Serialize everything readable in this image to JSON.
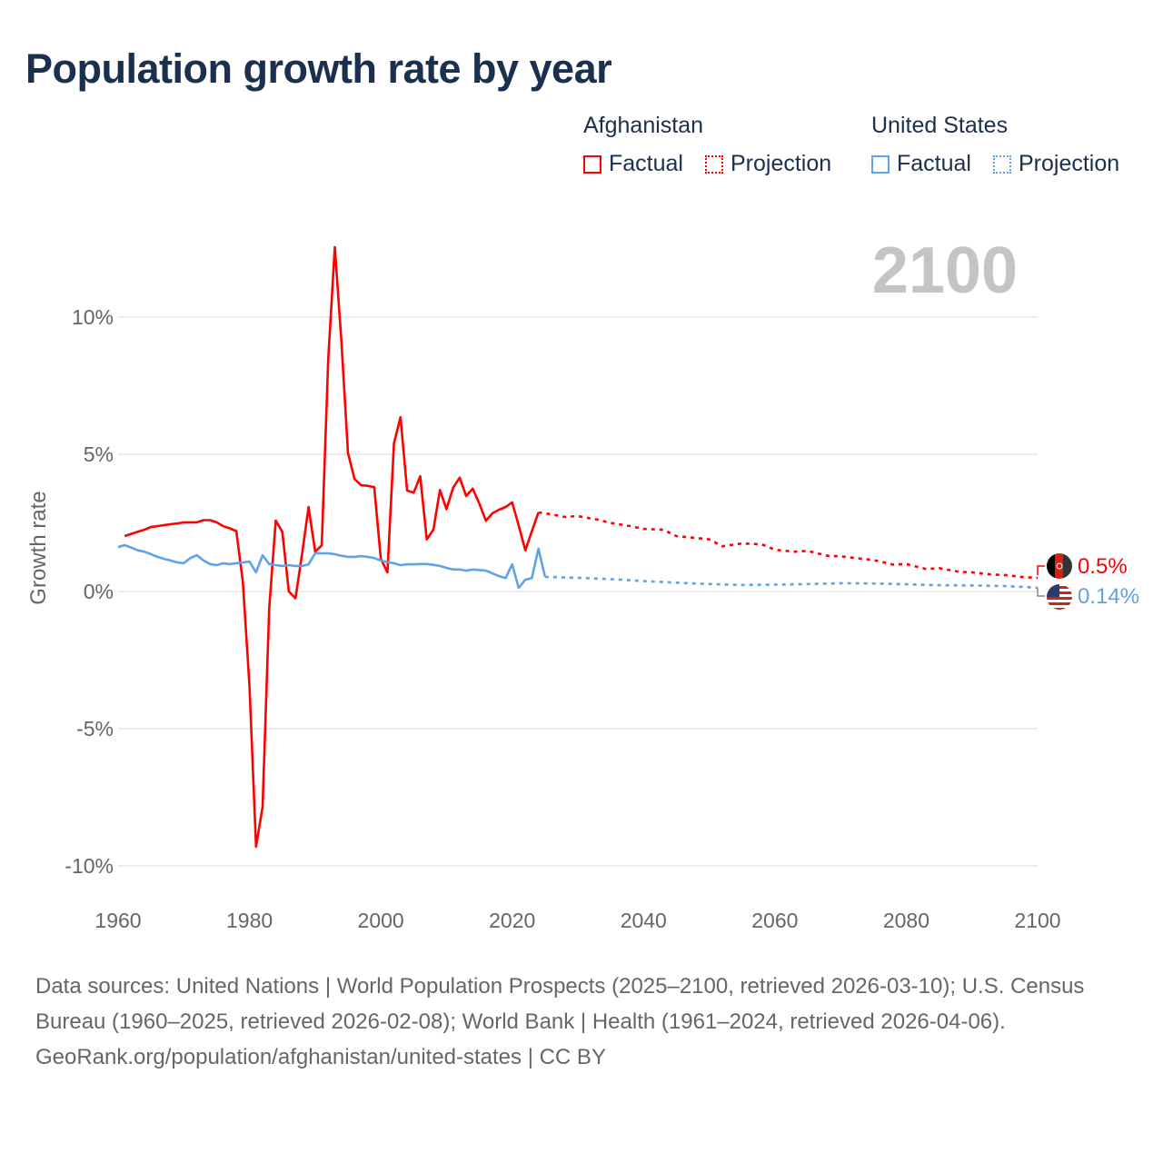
{
  "chart_data": {
    "type": "line",
    "title": "Population growth rate by year",
    "ylabel": "Growth rate",
    "xlabel": "",
    "xlim": [
      1960,
      2100
    ],
    "ylim": [
      -10.5,
      13
    ],
    "grid": true,
    "x_ticks": [
      1960,
      1980,
      2000,
      2020,
      2040,
      2060,
      2080,
      2100
    ],
    "x_tick_labels": [
      "1960",
      "1980",
      "2000",
      "2020",
      "2040",
      "2060",
      "2080",
      "2100"
    ],
    "y_ticks": [
      10,
      5,
      0,
      -5,
      -10
    ],
    "y_tick_labels": [
      "10%",
      "5%",
      "0%",
      "-5%",
      "-10%"
    ],
    "current_year_label": "2100",
    "legend_placement": "top-right",
    "legend": {
      "groups": [
        {
          "name": "Afghanistan",
          "items": [
            "Factual",
            "Projection"
          ],
          "color": "#ff0000"
        },
        {
          "name": "United States",
          "items": [
            "Factual",
            "Projection"
          ],
          "color": "#5fa2e8"
        }
      ]
    },
    "series": [
      {
        "name": "Afghanistan",
        "kind": "Factual",
        "color": "#ff0000",
        "x": [
          1961,
          1962,
          1963,
          1964,
          1965,
          1966,
          1967,
          1968,
          1969,
          1970,
          1971,
          1972,
          1973,
          1974,
          1975,
          1976,
          1977,
          1978,
          1979,
          1980,
          1981,
          1982,
          1983,
          1984,
          1985,
          1986,
          1987,
          1988,
          1989,
          1990,
          1991,
          1992,
          1993,
          1994,
          1995,
          1996,
          1997,
          1998,
          1999,
          2000,
          2001,
          2002,
          2003,
          2004,
          2005,
          2006,
          2007,
          2008,
          2009,
          2010,
          2011,
          2012,
          2013,
          2014,
          2015,
          2016,
          2017,
          2018,
          2019,
          2020,
          2021,
          2022,
          2023,
          2024
        ],
        "y": [
          2.02,
          2.1,
          2.18,
          2.25,
          2.35,
          2.38,
          2.42,
          2.45,
          2.48,
          2.52,
          2.52,
          2.52,
          2.6,
          2.6,
          2.52,
          2.38,
          2.3,
          2.2,
          0.35,
          -3.45,
          -9.3,
          -7.85,
          -0.6,
          2.58,
          2.18,
          0.0,
          -0.25,
          1.35,
          3.08,
          1.45,
          1.68,
          8.5,
          12.55,
          9.1,
          5.05,
          4.1,
          3.87,
          3.85,
          3.8,
          1.2,
          0.7,
          5.4,
          6.35,
          3.68,
          3.6,
          4.2,
          1.9,
          2.25,
          3.7,
          3.0,
          3.78,
          4.15,
          3.48,
          3.75,
          3.2,
          2.58,
          2.85,
          2.98,
          3.08,
          3.25,
          2.4,
          1.5,
          2.2,
          2.88
        ]
      },
      {
        "name": "Afghanistan",
        "kind": "Projection",
        "color": "#ff0000",
        "x": [
          2024,
          2025,
          2028,
          2030,
          2033,
          2035,
          2038,
          2040,
          2043,
          2045,
          2048,
          2050,
          2052,
          2055,
          2058,
          2060,
          2063,
          2065,
          2068,
          2070,
          2073,
          2075,
          2078,
          2080,
          2083,
          2085,
          2088,
          2090,
          2093,
          2095,
          2098,
          2100
        ],
        "y": [
          2.88,
          2.85,
          2.72,
          2.75,
          2.62,
          2.5,
          2.38,
          2.28,
          2.25,
          2.02,
          1.95,
          1.9,
          1.65,
          1.75,
          1.72,
          1.52,
          1.45,
          1.48,
          1.3,
          1.28,
          1.2,
          1.15,
          0.98,
          1.0,
          0.82,
          0.85,
          0.72,
          0.7,
          0.62,
          0.6,
          0.52,
          0.5
        ]
      },
      {
        "name": "United States",
        "kind": "Factual",
        "color": "#5fa2e8",
        "x": [
          1960,
          1961,
          1962,
          1963,
          1964,
          1965,
          1966,
          1967,
          1968,
          1969,
          1970,
          1971,
          1972,
          1973,
          1974,
          1975,
          1976,
          1977,
          1978,
          1979,
          1980,
          1981,
          1982,
          1983,
          1984,
          1985,
          1986,
          1987,
          1988,
          1989,
          1990,
          1991,
          1992,
          1993,
          1994,
          1995,
          1996,
          1997,
          1998,
          1999,
          2000,
          2001,
          2002,
          2003,
          2004,
          2005,
          2006,
          2007,
          2008,
          2009,
          2010,
          2011,
          2012,
          2013,
          2014,
          2015,
          2016,
          2017,
          2018,
          2019,
          2020,
          2021,
          2022,
          2023,
          2024,
          2025
        ],
        "y": [
          1.62,
          1.69,
          1.6,
          1.5,
          1.45,
          1.36,
          1.26,
          1.19,
          1.13,
          1.06,
          1.03,
          1.22,
          1.32,
          1.13,
          1.0,
          0.96,
          1.03,
          1.0,
          1.03,
          1.06,
          1.09,
          0.7,
          1.32,
          1.0,
          0.96,
          0.93,
          0.96,
          0.93,
          0.93,
          0.99,
          1.39,
          1.39,
          1.39,
          1.36,
          1.3,
          1.26,
          1.26,
          1.29,
          1.26,
          1.22,
          1.13,
          1.07,
          1.03,
          0.96,
          0.99,
          0.99,
          1.0,
          1.0,
          0.97,
          0.93,
          0.86,
          0.8,
          0.8,
          0.76,
          0.8,
          0.78,
          0.76,
          0.66,
          0.56,
          0.49,
          0.99,
          0.13,
          0.43,
          0.49,
          1.56,
          0.53
        ]
      },
      {
        "name": "United States",
        "kind": "Projection",
        "color": "#5fa2e8",
        "x": [
          2025,
          2030,
          2035,
          2040,
          2045,
          2050,
          2055,
          2060,
          2065,
          2070,
          2075,
          2080,
          2085,
          2090,
          2095,
          2100
        ],
        "y": [
          0.53,
          0.5,
          0.45,
          0.38,
          0.32,
          0.27,
          0.24,
          0.25,
          0.27,
          0.3,
          0.29,
          0.26,
          0.23,
          0.22,
          0.2,
          0.14
        ]
      }
    ],
    "end_labels": [
      {
        "country": "Afghanistan",
        "text": "0.5%",
        "color": "#ff0000"
      },
      {
        "country": "United States",
        "text": "0.14%",
        "color": "#5fa2e8"
      }
    ]
  },
  "footer": {
    "sources": "Data sources: United Nations | World Population Prospects (2025–2100, retrieved 2026-03-10); U.S. Census Bureau (1960–2025, retrieved 2026-02-08); World Bank | Health (1961–2024, retrieved 2026-04-06).",
    "link": "GeoRank.org/population/afghanistan/united-states | CC BY"
  }
}
